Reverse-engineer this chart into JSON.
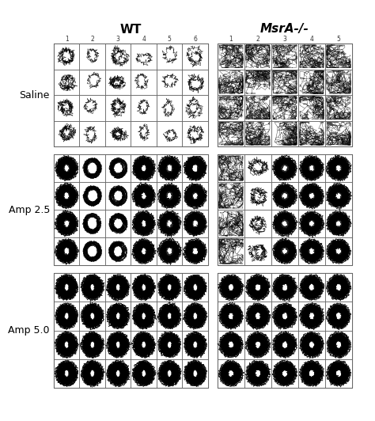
{
  "title_wt": "WT",
  "title_msra": "MsrA-/-",
  "row_labels": [
    "Saline",
    "Amp 2.5",
    "Amp 5.0"
  ],
  "wt_col_numbers": [
    "1",
    "2",
    "3",
    "4",
    "5",
    "6"
  ],
  "msra_col_numbers": [
    "1",
    "2",
    "3",
    "4",
    "5"
  ],
  "wt_cols": 6,
  "msra_cols": 5,
  "rows_per_group": 4,
  "num_groups": 3,
  "bg_color": "#ffffff",
  "grid_color": "#aaaaaa",
  "line_color": "#000000"
}
